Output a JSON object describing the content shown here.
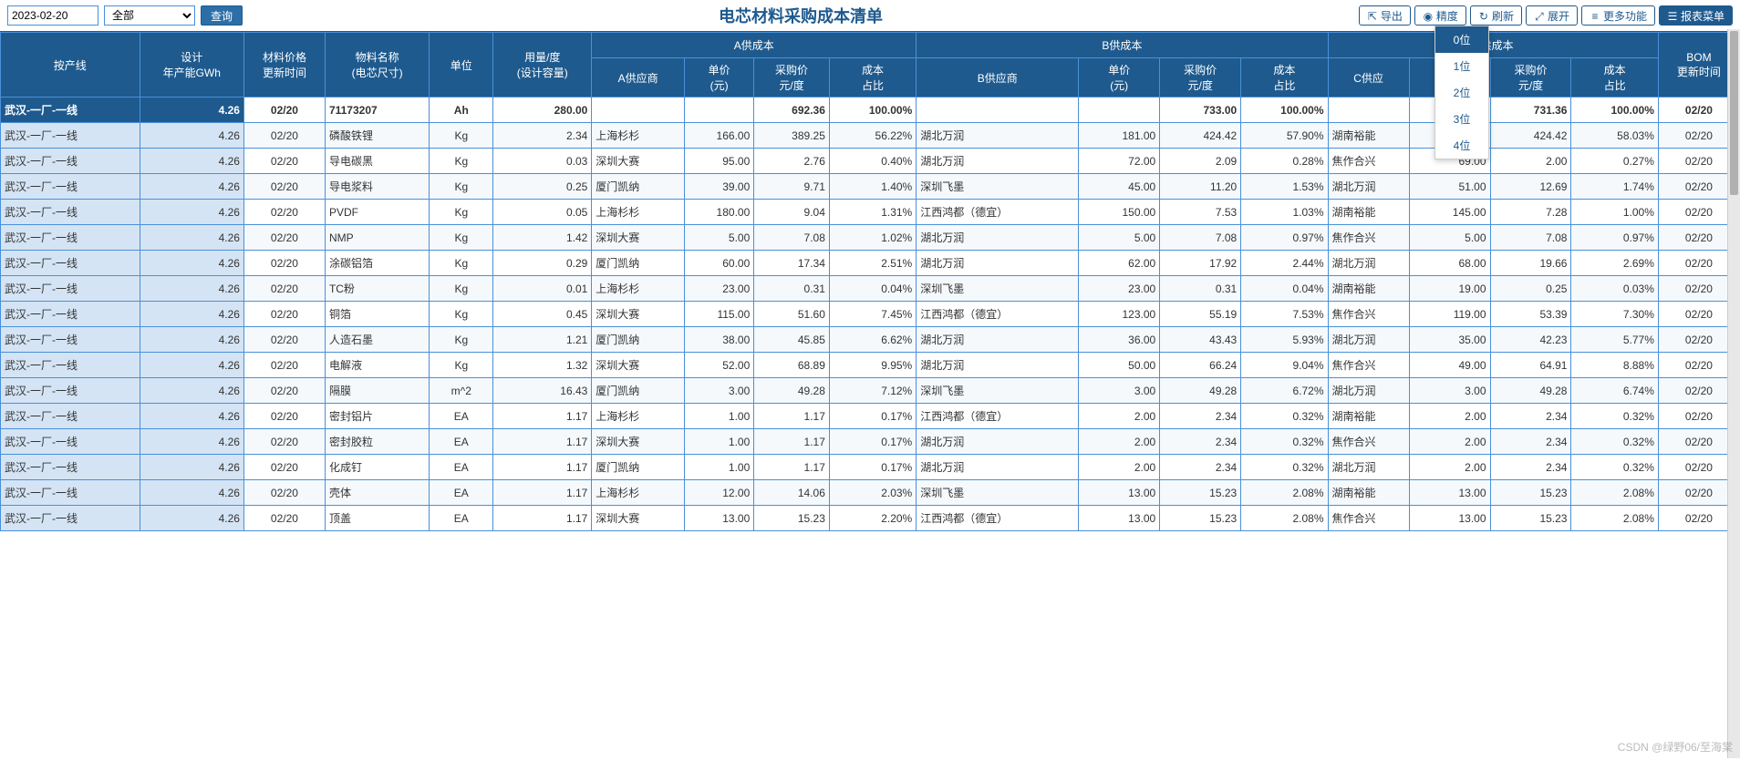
{
  "toolbar": {
    "date": "2023-02-20",
    "filter": "全部",
    "query": "查询",
    "title": "电芯材料采购成本清单",
    "export": "导出",
    "precision": "精度",
    "refresh": "刷新",
    "expand": "展开",
    "more": "更多功能",
    "report_menu": "报表菜单"
  },
  "precision_options": [
    "0位",
    "1位",
    "2位",
    "3位",
    "4位"
  ],
  "headers": {
    "line": "按产线",
    "capacity": "设计\n年产能GWh",
    "price_date": "材料价格\n更新时间",
    "material": "物料名称\n(电芯尺寸)",
    "unit": "单位",
    "usage": "用量/度\n(设计容量)",
    "groupA": "A供成本",
    "groupB": "B供成本",
    "groupC": "C供成本",
    "supplierA": "A供应商",
    "supplierB": "B供应商",
    "supplierC": "C供应",
    "price": "单价\n(元)",
    "cost_per": "采购价\n元/度",
    "ratio": "成本\n占比",
    "bom_date": "BOM\n更新时间"
  },
  "col_widths": {
    "line": 120,
    "capacity": 90,
    "price_date": 70,
    "material": 90,
    "unit": 55,
    "usage": 85,
    "supplierA": 80,
    "priceA": 60,
    "costA": 65,
    "ratioA": 75,
    "supplierB": 140,
    "priceB": 70,
    "costB": 70,
    "ratioB": 75,
    "supplierC": 70,
    "priceC": 70,
    "costC": 70,
    "ratioC": 75,
    "bom": 70
  },
  "rows": [
    {
      "line": "武汉-一厂-一线",
      "cap": "4.26",
      "pd": "02/20",
      "mat": "71173207",
      "unit": "Ah",
      "usage": "280.00",
      "sa": "",
      "pa": "",
      "ca": "692.36",
      "ra": "100.00%",
      "sb": "",
      "pb": "",
      "cb": "733.00",
      "rb": "100.00%",
      "sc": "",
      "pc": "",
      "cc": "731.36",
      "rc": "100.00%",
      "bom": "02/20"
    },
    {
      "line": "武汉-一厂-一线",
      "cap": "4.26",
      "pd": "02/20",
      "mat": "磷酸铁锂",
      "unit": "Kg",
      "usage": "2.34",
      "sa": "上海杉杉",
      "pa": "166.00",
      "ca": "389.25",
      "ra": "56.22%",
      "sb": "湖北万润",
      "pb": "181.00",
      "cb": "424.42",
      "rb": "57.90%",
      "sc": "湖南裕能",
      "pc": "181.00",
      "cc": "424.42",
      "rc": "58.03%",
      "bom": "02/20"
    },
    {
      "line": "武汉-一厂-一线",
      "cap": "4.26",
      "pd": "02/20",
      "mat": "导电碳黑",
      "unit": "Kg",
      "usage": "0.03",
      "sa": "深圳大赛",
      "pa": "95.00",
      "ca": "2.76",
      "ra": "0.40%",
      "sb": "湖北万润",
      "pb": "72.00",
      "cb": "2.09",
      "rb": "0.28%",
      "sc": "焦作合兴",
      "pc": "69.00",
      "cc": "2.00",
      "rc": "0.27%",
      "bom": "02/20"
    },
    {
      "line": "武汉-一厂-一线",
      "cap": "4.26",
      "pd": "02/20",
      "mat": "导电浆料",
      "unit": "Kg",
      "usage": "0.25",
      "sa": "厦门凯纳",
      "pa": "39.00",
      "ca": "9.71",
      "ra": "1.40%",
      "sb": "深圳飞墨",
      "pb": "45.00",
      "cb": "11.20",
      "rb": "1.53%",
      "sc": "湖北万润",
      "pc": "51.00",
      "cc": "12.69",
      "rc": "1.74%",
      "bom": "02/20"
    },
    {
      "line": "武汉-一厂-一线",
      "cap": "4.26",
      "pd": "02/20",
      "mat": "PVDF",
      "unit": "Kg",
      "usage": "0.05",
      "sa": "上海杉杉",
      "pa": "180.00",
      "ca": "9.04",
      "ra": "1.31%",
      "sb": "江西鸿都（德宜）",
      "pb": "150.00",
      "cb": "7.53",
      "rb": "1.03%",
      "sc": "湖南裕能",
      "pc": "145.00",
      "cc": "7.28",
      "rc": "1.00%",
      "bom": "02/20"
    },
    {
      "line": "武汉-一厂-一线",
      "cap": "4.26",
      "pd": "02/20",
      "mat": "NMP",
      "unit": "Kg",
      "usage": "1.42",
      "sa": "深圳大赛",
      "pa": "5.00",
      "ca": "7.08",
      "ra": "1.02%",
      "sb": "湖北万润",
      "pb": "5.00",
      "cb": "7.08",
      "rb": "0.97%",
      "sc": "焦作合兴",
      "pc": "5.00",
      "cc": "7.08",
      "rc": "0.97%",
      "bom": "02/20"
    },
    {
      "line": "武汉-一厂-一线",
      "cap": "4.26",
      "pd": "02/20",
      "mat": "涂碳铝箔",
      "unit": "Kg",
      "usage": "0.29",
      "sa": "厦门凯纳",
      "pa": "60.00",
      "ca": "17.34",
      "ra": "2.51%",
      "sb": "湖北万润",
      "pb": "62.00",
      "cb": "17.92",
      "rb": "2.44%",
      "sc": "湖北万润",
      "pc": "68.00",
      "cc": "19.66",
      "rc": "2.69%",
      "bom": "02/20"
    },
    {
      "line": "武汉-一厂-一线",
      "cap": "4.26",
      "pd": "02/20",
      "mat": "TC粉",
      "unit": "Kg",
      "usage": "0.01",
      "sa": "上海杉杉",
      "pa": "23.00",
      "ca": "0.31",
      "ra": "0.04%",
      "sb": "深圳飞墨",
      "pb": "23.00",
      "cb": "0.31",
      "rb": "0.04%",
      "sc": "湖南裕能",
      "pc": "19.00",
      "cc": "0.25",
      "rc": "0.03%",
      "bom": "02/20"
    },
    {
      "line": "武汉-一厂-一线",
      "cap": "4.26",
      "pd": "02/20",
      "mat": "铜箔",
      "unit": "Kg",
      "usage": "0.45",
      "sa": "深圳大赛",
      "pa": "115.00",
      "ca": "51.60",
      "ra": "7.45%",
      "sb": "江西鸿都（德宜）",
      "pb": "123.00",
      "cb": "55.19",
      "rb": "7.53%",
      "sc": "焦作合兴",
      "pc": "119.00",
      "cc": "53.39",
      "rc": "7.30%",
      "bom": "02/20"
    },
    {
      "line": "武汉-一厂-一线",
      "cap": "4.26",
      "pd": "02/20",
      "mat": "人造石墨",
      "unit": "Kg",
      "usage": "1.21",
      "sa": "厦门凯纳",
      "pa": "38.00",
      "ca": "45.85",
      "ra": "6.62%",
      "sb": "湖北万润",
      "pb": "36.00",
      "cb": "43.43",
      "rb": "5.93%",
      "sc": "湖北万润",
      "pc": "35.00",
      "cc": "42.23",
      "rc": "5.77%",
      "bom": "02/20"
    },
    {
      "line": "武汉-一厂-一线",
      "cap": "4.26",
      "pd": "02/20",
      "mat": "电解液",
      "unit": "Kg",
      "usage": "1.32",
      "sa": "深圳大赛",
      "pa": "52.00",
      "ca": "68.89",
      "ra": "9.95%",
      "sb": "湖北万润",
      "pb": "50.00",
      "cb": "66.24",
      "rb": "9.04%",
      "sc": "焦作合兴",
      "pc": "49.00",
      "cc": "64.91",
      "rc": "8.88%",
      "bom": "02/20"
    },
    {
      "line": "武汉-一厂-一线",
      "cap": "4.26",
      "pd": "02/20",
      "mat": "隔膜",
      "unit": "m^2",
      "usage": "16.43",
      "sa": "厦门凯纳",
      "pa": "3.00",
      "ca": "49.28",
      "ra": "7.12%",
      "sb": "深圳飞墨",
      "pb": "3.00",
      "cb": "49.28",
      "rb": "6.72%",
      "sc": "湖北万润",
      "pc": "3.00",
      "cc": "49.28",
      "rc": "6.74%",
      "bom": "02/20"
    },
    {
      "line": "武汉-一厂-一线",
      "cap": "4.26",
      "pd": "02/20",
      "mat": "密封铝片",
      "unit": "EA",
      "usage": "1.17",
      "sa": "上海杉杉",
      "pa": "1.00",
      "ca": "1.17",
      "ra": "0.17%",
      "sb": "江西鸿都（德宜）",
      "pb": "2.00",
      "cb": "2.34",
      "rb": "0.32%",
      "sc": "湖南裕能",
      "pc": "2.00",
      "cc": "2.34",
      "rc": "0.32%",
      "bom": "02/20"
    },
    {
      "line": "武汉-一厂-一线",
      "cap": "4.26",
      "pd": "02/20",
      "mat": "密封胶粒",
      "unit": "EA",
      "usage": "1.17",
      "sa": "深圳大赛",
      "pa": "1.00",
      "ca": "1.17",
      "ra": "0.17%",
      "sb": "湖北万润",
      "pb": "2.00",
      "cb": "2.34",
      "rb": "0.32%",
      "sc": "焦作合兴",
      "pc": "2.00",
      "cc": "2.34",
      "rc": "0.32%",
      "bom": "02/20"
    },
    {
      "line": "武汉-一厂-一线",
      "cap": "4.26",
      "pd": "02/20",
      "mat": "化成钉",
      "unit": "EA",
      "usage": "1.17",
      "sa": "厦门凯纳",
      "pa": "1.00",
      "ca": "1.17",
      "ra": "0.17%",
      "sb": "湖北万润",
      "pb": "2.00",
      "cb": "2.34",
      "rb": "0.32%",
      "sc": "湖北万润",
      "pc": "2.00",
      "cc": "2.34",
      "rc": "0.32%",
      "bom": "02/20"
    },
    {
      "line": "武汉-一厂-一线",
      "cap": "4.26",
      "pd": "02/20",
      "mat": "壳体",
      "unit": "EA",
      "usage": "1.17",
      "sa": "上海杉杉",
      "pa": "12.00",
      "ca": "14.06",
      "ra": "2.03%",
      "sb": "深圳飞墨",
      "pb": "13.00",
      "cb": "15.23",
      "rb": "2.08%",
      "sc": "湖南裕能",
      "pc": "13.00",
      "cc": "15.23",
      "rc": "2.08%",
      "bom": "02/20"
    },
    {
      "line": "武汉-一厂-一线",
      "cap": "4.26",
      "pd": "02/20",
      "mat": "顶盖",
      "unit": "EA",
      "usage": "1.17",
      "sa": "深圳大赛",
      "pa": "13.00",
      "ca": "15.23",
      "ra": "2.20%",
      "sb": "江西鸿都（德宜）",
      "pb": "13.00",
      "cb": "15.23",
      "rb": "2.08%",
      "sc": "焦作合兴",
      "pc": "13.00",
      "cc": "15.23",
      "rc": "2.08%",
      "bom": "02/20"
    }
  ],
  "watermark": "CSDN @绿野06/至海棠"
}
